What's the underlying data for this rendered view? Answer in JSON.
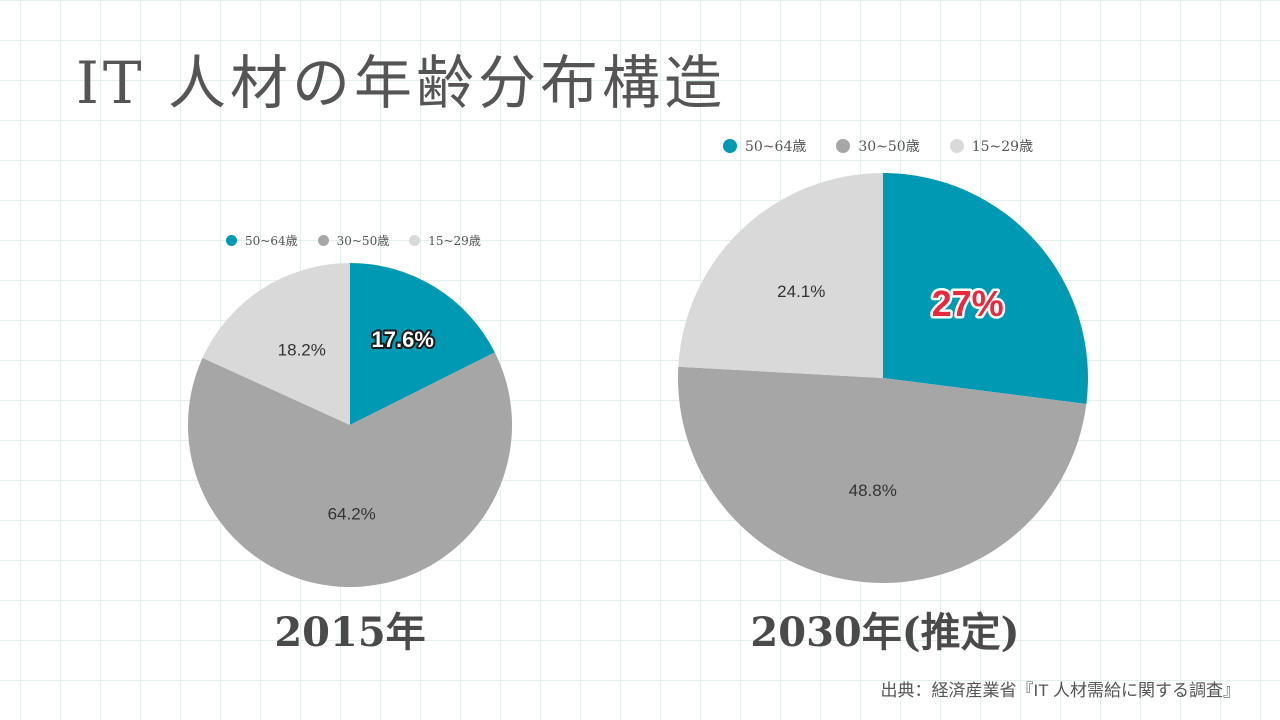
{
  "page": {
    "title": "IT 人材の年齢分布構造",
    "source": "出典：経済産業省『IT 人材需給に関する調査』"
  },
  "colors": {
    "teal": "#0099b3",
    "gray": "#a6a6a6",
    "light_gray": "#d9d9d9",
    "highlight_red": "#e8283c"
  },
  "chart_data": [
    {
      "type": "pie",
      "title": "2015年",
      "labels": [
        "50~64歳",
        "30~50歳",
        "15~29歳"
      ],
      "values": [
        17.6,
        64.2,
        18.2
      ],
      "value_labels": [
        "17.6%",
        "64.2%",
        "18.2%"
      ],
      "highlighted": "50~64歳",
      "legend_position": "top"
    },
    {
      "type": "pie",
      "title": "2030年(推定)",
      "labels": [
        "50~64歳",
        "30~50歳",
        "15~29歳"
      ],
      "values": [
        27,
        48.8,
        24.1
      ],
      "value_labels": [
        "27%",
        "48.8%",
        "24.1%"
      ],
      "highlighted": "50~64歳",
      "legend_position": "top"
    }
  ]
}
